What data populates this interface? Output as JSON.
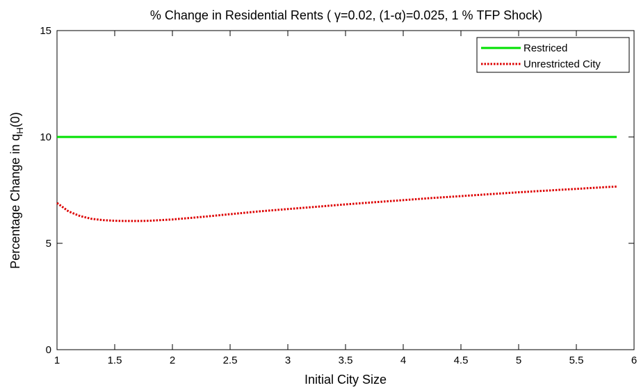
{
  "chart_data": {
    "type": "line",
    "title": "% Change in Residential Rents ( γ=0.02, (1-α)=0.025, 1 % TFP Shock)",
    "xlabel": "Initial City Size",
    "ylabel": "Percentage Change in q_H(0)",
    "xlim": [
      1,
      6
    ],
    "ylim": [
      0,
      15
    ],
    "xticks": [
      "1",
      "1.5",
      "2",
      "2.5",
      "3",
      "3.5",
      "4",
      "4.5",
      "5",
      "5.5",
      "6"
    ],
    "yticks": [
      "0",
      "5",
      "10",
      "15"
    ],
    "grid": false,
    "legend_position": "top-right",
    "series": [
      {
        "name": "Restriced",
        "color": "#00e000",
        "style": "solid",
        "x": [
          1,
          1.5,
          2,
          2.5,
          3,
          3.5,
          4,
          4.5,
          5,
          5.5,
          5.85
        ],
        "y": [
          10,
          10,
          10,
          10,
          10,
          10,
          10,
          10,
          10,
          10,
          10
        ]
      },
      {
        "name": "Unrestricted City",
        "color": "#dd0000",
        "style": "dotted",
        "x": [
          1,
          1.1,
          1.2,
          1.3,
          1.4,
          1.5,
          1.6,
          1.7,
          1.8,
          2,
          2.25,
          2.5,
          2.75,
          3,
          3.25,
          3.5,
          3.75,
          4,
          4.25,
          4.5,
          4.75,
          5,
          5.25,
          5.5,
          5.75,
          5.85
        ],
        "y": [
          6.9,
          6.5,
          6.28,
          6.15,
          6.09,
          6.06,
          6.05,
          6.05,
          6.06,
          6.12,
          6.24,
          6.37,
          6.5,
          6.61,
          6.72,
          6.83,
          6.93,
          7.03,
          7.13,
          7.22,
          7.31,
          7.4,
          7.48,
          7.56,
          7.64,
          7.67
        ]
      }
    ]
  }
}
